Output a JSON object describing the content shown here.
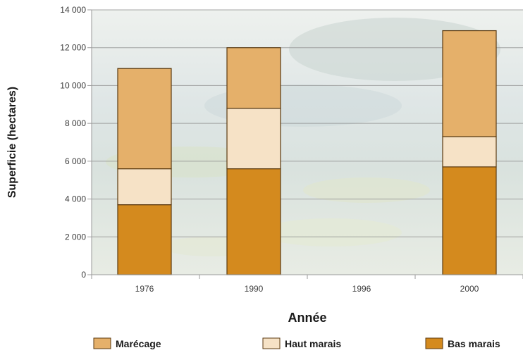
{
  "chart_data": {
    "type": "bar",
    "stacked": true,
    "title": "",
    "xlabel": "Année",
    "ylabel": "Superficie (hectares)",
    "categories": [
      "1976",
      "1990",
      "1996",
      "2000"
    ],
    "ylim": [
      0,
      14000
    ],
    "y_ticks": [
      "0",
      "2 000",
      "4 000",
      "6 000",
      "8 000",
      "10 000",
      "12 000",
      "14 000"
    ],
    "y_tick_values": [
      0,
      2000,
      4000,
      6000,
      8000,
      10000,
      12000,
      14000
    ],
    "grid": true,
    "legend_position": "bottom",
    "series": [
      {
        "name": "Bas marais",
        "color": "#d48a1e",
        "values": [
          3700,
          5600,
          null,
          5700
        ]
      },
      {
        "name": "Haut marais",
        "color": "#f6e2c6",
        "values": [
          1900,
          3200,
          null,
          1600
        ]
      },
      {
        "name": "Marécage",
        "color": "#e5b06a",
        "values": [
          5300,
          3200,
          null,
          5600
        ]
      }
    ],
    "legend_order": [
      "Marécage",
      "Haut marais",
      "Bas marais"
    ]
  }
}
